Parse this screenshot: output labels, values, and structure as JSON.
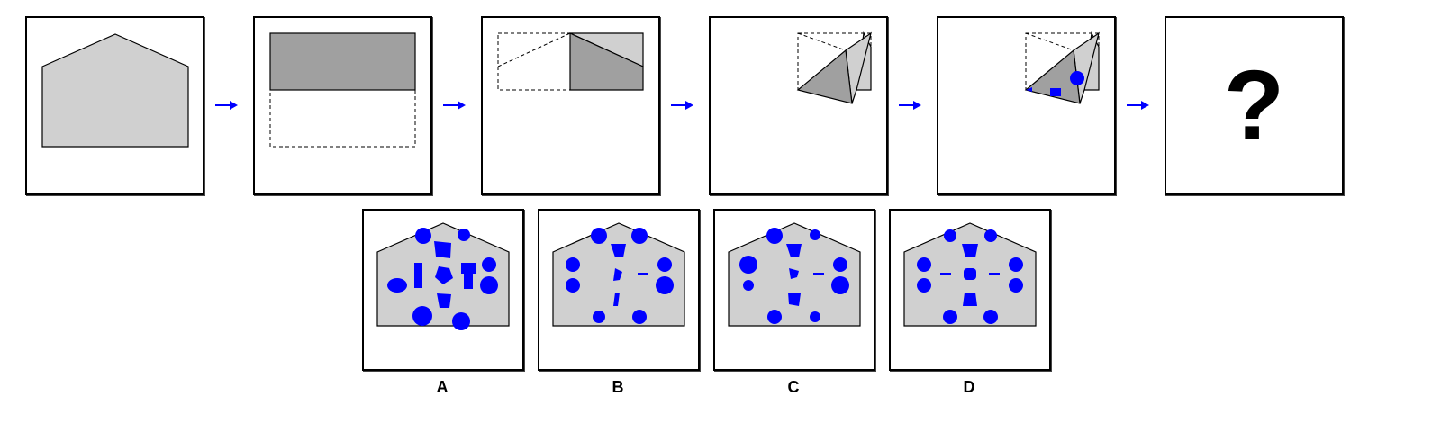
{
  "puzzle": {
    "question_mark": "?",
    "options": [
      {
        "label": "A"
      },
      {
        "label": "B"
      },
      {
        "label": "C"
      },
      {
        "label": "D"
      }
    ]
  },
  "colors": {
    "paper": "#d0d0d0",
    "folded": "#a0a0a0",
    "hole": "#0000ff",
    "arrow": "#0000ff",
    "outline": "#000000"
  }
}
